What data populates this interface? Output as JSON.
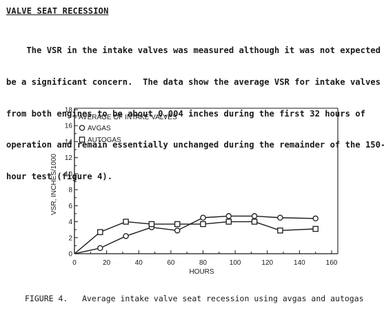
{
  "section": {
    "heading": "VALVE SEAT RECESSION",
    "paragraph_lines": [
      "    The VSR in the intake valves was measured although it was not expected to",
      "be a significant concern.  The data show the average VSR for intake valves",
      "from both engines to be about 0.004 inches during the first 32 hours of",
      "operation and remain essentially unchanged during the remainder of the 150-",
      "hour test (figure 4)."
    ]
  },
  "figure": {
    "caption": "FIGURE 4.   Average intake valve seat recession using avgas and autogas"
  },
  "chart_data": {
    "type": "line",
    "title": "AVERAGE OF INTAKE VALVES",
    "xlabel": "HOURS",
    "ylabel": "VSR, INCHES/1000",
    "xlim": [
      0,
      160
    ],
    "ylim": [
      0,
      18
    ],
    "xticks": [
      0,
      20,
      40,
      60,
      80,
      100,
      120,
      140,
      160
    ],
    "yticks": [
      0,
      2,
      4,
      6,
      8,
      10,
      12,
      14,
      16,
      18
    ],
    "grid": false,
    "legend_position": "top-left",
    "series": [
      {
        "name": "AVGAS",
        "marker": "circle",
        "x": [
          0,
          16,
          32,
          48,
          64,
          80,
          96,
          112,
          128,
          150
        ],
        "y": [
          0,
          0.7,
          2.2,
          3.3,
          2.9,
          4.5,
          4.7,
          4.7,
          4.5,
          4.4
        ]
      },
      {
        "name": "AUTOGAS",
        "marker": "square",
        "x": [
          0,
          16,
          32,
          48,
          64,
          80,
          96,
          112,
          128,
          150
        ],
        "y": [
          0,
          2.7,
          4.0,
          3.7,
          3.7,
          3.7,
          4.0,
          4.0,
          2.9,
          3.1
        ]
      }
    ]
  }
}
